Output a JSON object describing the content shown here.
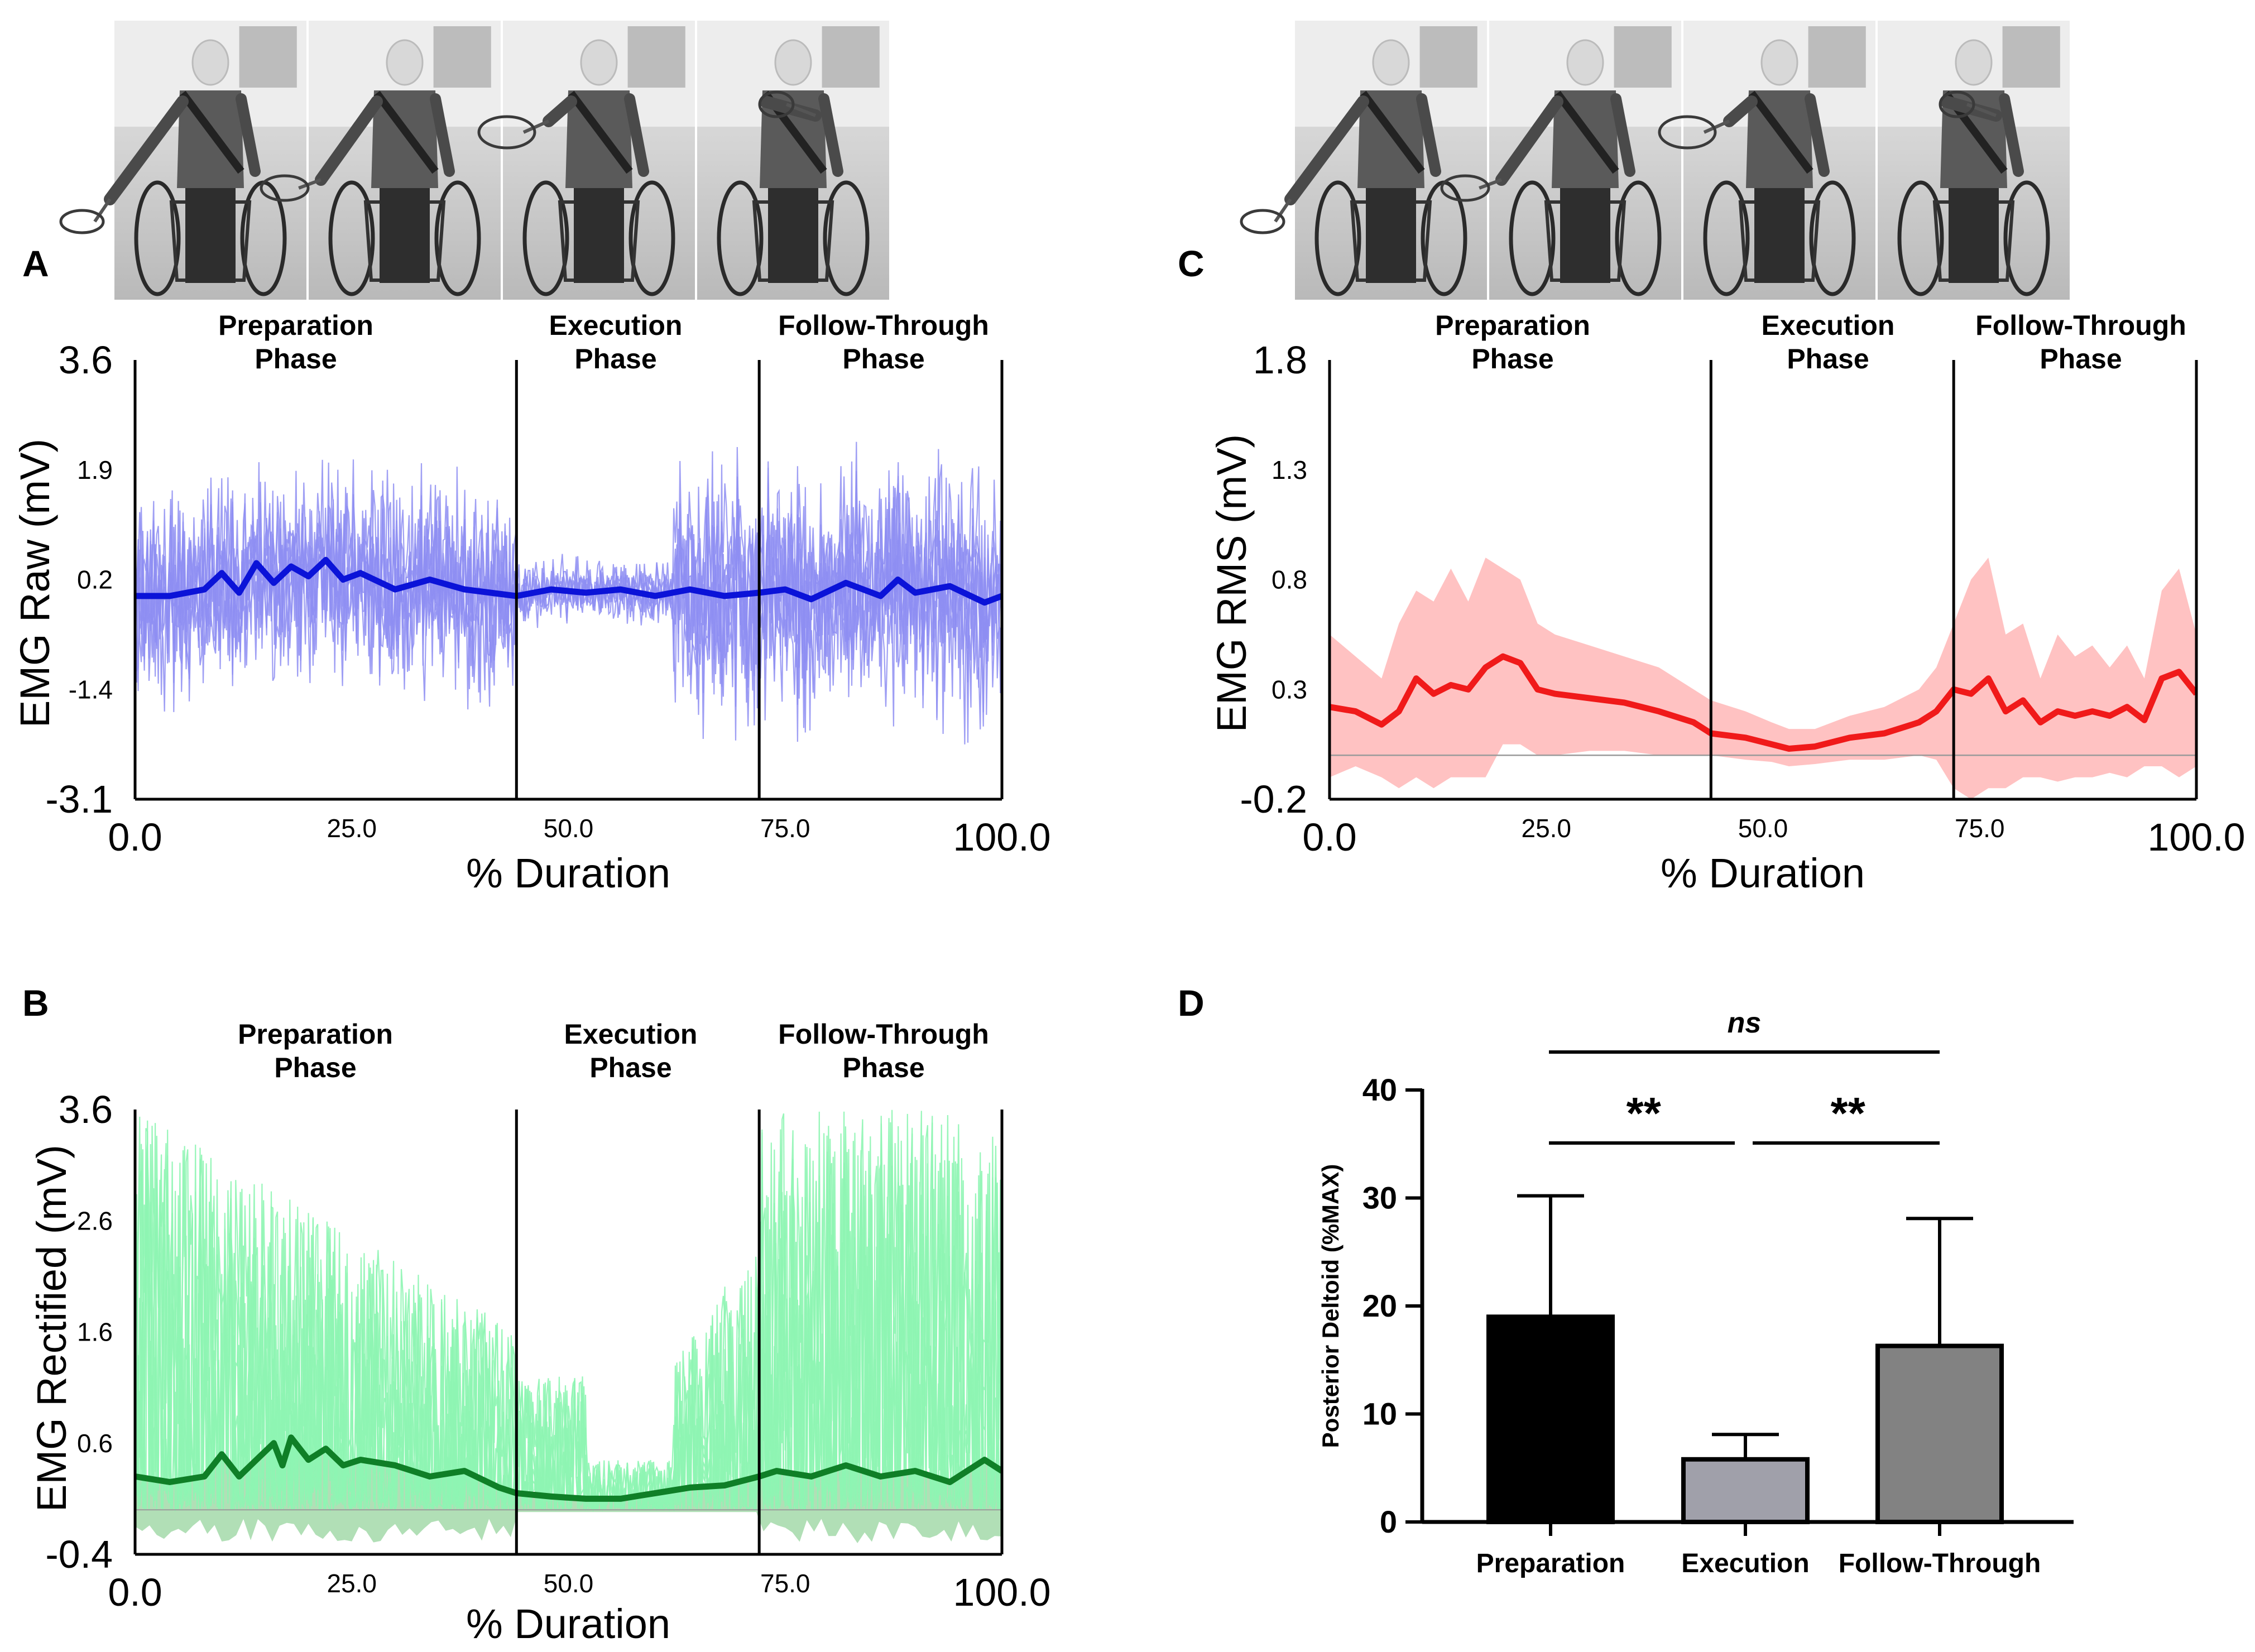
{
  "figure": {
    "panel_letters": [
      "A",
      "B",
      "C",
      "D"
    ],
    "phase_labels": {
      "preparation": [
        "Preparation",
        "Phase"
      ],
      "execution": [
        "Execution",
        "Phase"
      ],
      "follow_through": [
        "Follow-Through",
        "Phase"
      ]
    }
  },
  "colors": {
    "raw_light": "#8e8ef2",
    "raw_dark": "#0b13d8",
    "rect_light": "#8ef5b2",
    "rect_band": "#a8dcae",
    "rect_dark": "#0f7f27",
    "rms_band": "#ffc2c2",
    "rms_line": "#f01a1a",
    "bar_prep": "#000000",
    "bar_exec": "#a0a0aa",
    "bar_follow": "#828282"
  },
  "chart_data": [
    {
      "panel": "A",
      "type": "line",
      "ylabel": "EMG Raw (mV)",
      "xlabel": "% Duration",
      "ylim": [
        -3.1,
        3.6
      ],
      "xlim": [
        0,
        100
      ],
      "y_ticks": [
        "3.6",
        "1.9",
        "0.2",
        "-1.4",
        "-3.1"
      ],
      "x_ticks": [
        "0.0",
        "25.0",
        "50.0",
        "75.0",
        "100.0"
      ],
      "phase_boundaries": [
        44,
        72,
        100
      ],
      "series": [
        {
          "name": "raw trials",
          "style": "thin light lines",
          "spread_by_phase": [
            1.9,
            0.6,
            2.4
          ]
        },
        {
          "name": "mean",
          "x": [
            0,
            4,
            8,
            10,
            12,
            14,
            16,
            18,
            20,
            22,
            24,
            26,
            30,
            34,
            38,
            44,
            48,
            52,
            56,
            60,
            64,
            68,
            72,
            75,
            78,
            82,
            86,
            88,
            90,
            94,
            98,
            100
          ],
          "values": [
            0.0,
            0.0,
            0.1,
            0.35,
            0.05,
            0.5,
            0.2,
            0.45,
            0.3,
            0.55,
            0.25,
            0.35,
            0.1,
            0.25,
            0.1,
            0.0,
            0.1,
            0.05,
            0.1,
            0.0,
            0.1,
            0.0,
            0.05,
            0.1,
            -0.05,
            0.2,
            0.0,
            0.25,
            0.05,
            0.15,
            -0.1,
            0.0
          ]
        }
      ]
    },
    {
      "panel": "B",
      "type": "area",
      "ylabel": "EMG Rectified (mV)",
      "xlabel": "% Duration",
      "ylim": [
        -0.4,
        3.6
      ],
      "xlim": [
        0,
        100
      ],
      "y_ticks": [
        "3.6",
        "2.6",
        "1.6",
        "0.6",
        "-0.4"
      ],
      "x_ticks": [
        "0.0",
        "25.0",
        "50.0",
        "75.0",
        "100.0"
      ],
      "phase_boundaries": [
        44,
        72,
        100
      ],
      "series": [
        {
          "name": "rectified trials",
          "style": "thin light lines",
          "peak_by_phase": [
            3.6,
            2.2,
            3.6
          ]
        },
        {
          "name": "mean",
          "x": [
            0,
            4,
            8,
            10,
            12,
            14,
            16,
            17,
            18,
            20,
            22,
            24,
            26,
            30,
            34,
            38,
            42,
            44,
            48,
            52,
            56,
            60,
            64,
            68,
            72,
            74,
            78,
            82,
            86,
            90,
            94,
            98,
            100
          ],
          "values": [
            0.3,
            0.25,
            0.3,
            0.5,
            0.3,
            0.45,
            0.6,
            0.4,
            0.65,
            0.45,
            0.55,
            0.4,
            0.45,
            0.4,
            0.3,
            0.35,
            0.2,
            0.15,
            0.12,
            0.1,
            0.1,
            0.15,
            0.2,
            0.22,
            0.3,
            0.35,
            0.3,
            0.4,
            0.3,
            0.35,
            0.25,
            0.45,
            0.35
          ]
        }
      ]
    },
    {
      "panel": "C",
      "type": "line",
      "ylabel": "EMG RMS (mV)",
      "xlabel": "% Duration",
      "ylim": [
        -0.2,
        1.8
      ],
      "xlim": [
        0,
        100
      ],
      "y_ticks": [
        "1.8",
        "1.3",
        "0.8",
        "0.3",
        "-0.2"
      ],
      "x_ticks": [
        "0.0",
        "25.0",
        "50.0",
        "75.0",
        "100.0"
      ],
      "phase_boundaries": [
        44,
        72,
        100
      ],
      "baseline": 0.0,
      "series": [
        {
          "name": "mean",
          "x": [
            0,
            3,
            6,
            8,
            10,
            12,
            14,
            16,
            18,
            20,
            22,
            24,
            26,
            30,
            34,
            38,
            42,
            44,
            48,
            51,
            53,
            56,
            60,
            64,
            68,
            70,
            72,
            74,
            76,
            78,
            80,
            82,
            84,
            86,
            88,
            90,
            92,
            94,
            96,
            98,
            100
          ],
          "values": [
            0.22,
            0.2,
            0.14,
            0.2,
            0.35,
            0.28,
            0.32,
            0.3,
            0.4,
            0.45,
            0.42,
            0.3,
            0.28,
            0.26,
            0.24,
            0.2,
            0.15,
            0.1,
            0.08,
            0.05,
            0.03,
            0.04,
            0.08,
            0.1,
            0.15,
            0.2,
            0.3,
            0.28,
            0.35,
            0.2,
            0.25,
            0.15,
            0.2,
            0.18,
            0.2,
            0.18,
            0.22,
            0.16,
            0.35,
            0.38,
            0.28
          ]
        },
        {
          "name": "sd band",
          "upper": [
            0.55,
            0.45,
            0.35,
            0.6,
            0.75,
            0.7,
            0.85,
            0.7,
            0.9,
            0.85,
            0.8,
            0.6,
            0.55,
            0.5,
            0.45,
            0.4,
            0.3,
            0.25,
            0.2,
            0.15,
            0.12,
            0.12,
            0.18,
            0.22,
            0.3,
            0.4,
            0.6,
            0.8,
            0.9,
            0.55,
            0.6,
            0.35,
            0.55,
            0.45,
            0.5,
            0.4,
            0.5,
            0.35,
            0.75,
            0.85,
            0.55
          ],
          "lower": [
            -0.1,
            -0.05,
            -0.1,
            -0.15,
            -0.1,
            -0.15,
            -0.1,
            -0.1,
            -0.1,
            0.05,
            0.05,
            0.0,
            0.0,
            0.02,
            0.02,
            0.0,
            0.0,
            0.0,
            -0.02,
            -0.03,
            -0.05,
            -0.04,
            -0.02,
            -0.02,
            0.0,
            -0.02,
            -0.15,
            -0.2,
            -0.15,
            -0.15,
            -0.1,
            -0.1,
            -0.12,
            -0.1,
            -0.1,
            -0.08,
            -0.1,
            -0.05,
            -0.05,
            -0.1,
            -0.05
          ]
        }
      ]
    },
    {
      "panel": "D",
      "type": "bar",
      "ylabel": "Posterior Deltoid (%MAX)",
      "ylim": [
        0,
        40
      ],
      "y_ticks": [
        "0",
        "10",
        "20",
        "30",
        "40"
      ],
      "categories": [
        "Preparation",
        "Execution",
        "Follow-Through"
      ],
      "values": [
        19,
        5.8,
        16.3
      ],
      "errors": [
        11.2,
        2.3,
        11.8
      ],
      "significance": [
        {
          "from": 0,
          "to": 1,
          "label": "**"
        },
        {
          "from": 1,
          "to": 2,
          "label": "**"
        },
        {
          "from": 0,
          "to": 2,
          "label": "ns"
        }
      ]
    }
  ]
}
